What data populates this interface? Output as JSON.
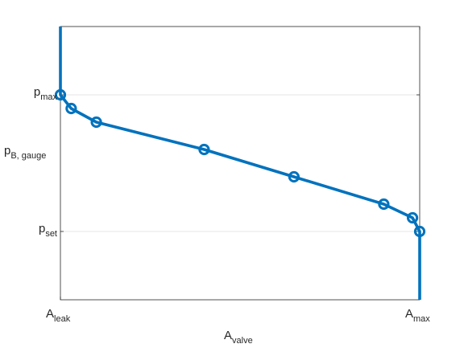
{
  "chart_data": {
    "type": "line",
    "grid": "horizontal at y ticks",
    "xlabel": {
      "main": "A",
      "sub": "valve"
    },
    "ylabel": {
      "main": "p",
      "sub": "B, gauge"
    },
    "x_ticks": [
      {
        "value": 0,
        "main": "A",
        "sub": "leak"
      },
      {
        "value": 1,
        "main": "A",
        "sub": "max"
      }
    ],
    "y_ticks": [
      {
        "value": 0,
        "main": "p",
        "sub": "set"
      },
      {
        "value": 1,
        "main": "p",
        "sub": "max"
      }
    ],
    "xlim": [
      0,
      1
    ],
    "ylim": [
      -0.5,
      1.5
    ],
    "series": [
      {
        "color": "#0072BD",
        "x": [
          0,
          0,
          0.03,
          0.1,
          0.4,
          0.65,
          0.9,
          0.98,
          1.0,
          1.0
        ],
        "y": [
          1.5,
          1.0,
          0.9,
          0.8,
          0.6,
          0.4,
          0.2,
          0.1,
          0.0,
          -0.5
        ],
        "markers": [
          false,
          true,
          true,
          true,
          true,
          true,
          true,
          true,
          true,
          false
        ]
      }
    ]
  }
}
